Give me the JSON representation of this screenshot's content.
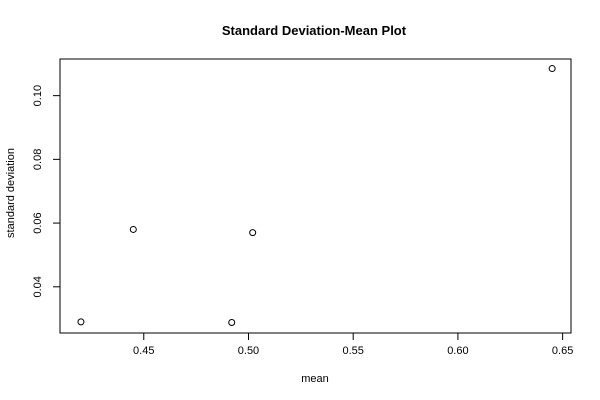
{
  "chart_data": {
    "type": "scatter",
    "title": "Standard Deviation-Mean Plot",
    "xlabel": "mean",
    "ylabel": "standard deviation",
    "xlim": [
      0.41,
      0.654
    ],
    "ylim": [
      0.0255,
      0.1115
    ],
    "x_ticks": [
      0.45,
      0.5,
      0.55,
      0.6,
      0.65
    ],
    "x_tick_labels": [
      "0.45",
      "0.50",
      "0.55",
      "0.60",
      "0.65"
    ],
    "y_ticks": [
      0.04,
      0.06,
      0.08,
      0.1
    ],
    "y_tick_labels": [
      "0.04",
      "0.06",
      "0.08",
      "0.10"
    ],
    "grid": false,
    "legend": "none",
    "points": [
      {
        "x": 0.42,
        "y": 0.029
      },
      {
        "x": 0.445,
        "y": 0.058
      },
      {
        "x": 0.492,
        "y": 0.0288
      },
      {
        "x": 0.502,
        "y": 0.057
      },
      {
        "x": 0.645,
        "y": 0.1085
      }
    ]
  }
}
